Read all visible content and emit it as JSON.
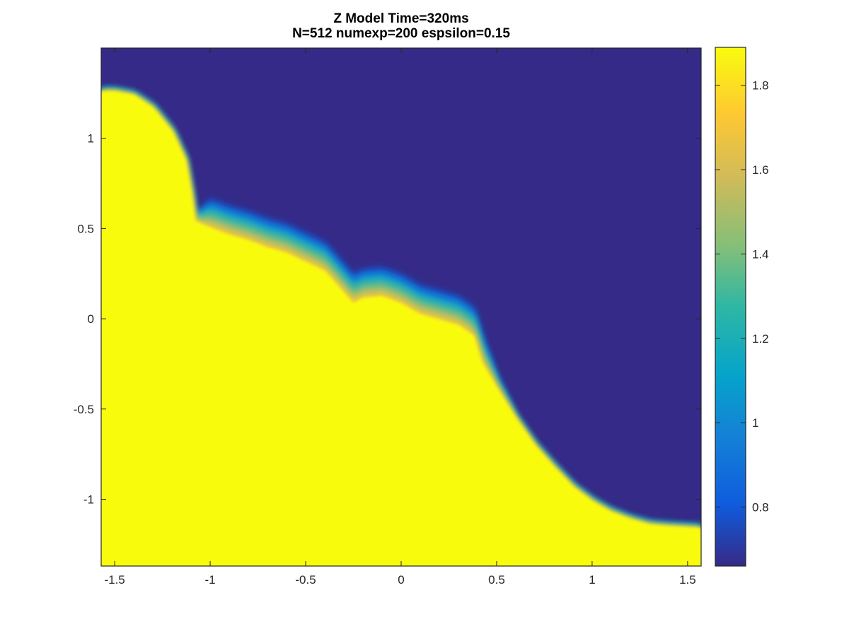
{
  "chart_data": {
    "type": "heatmap",
    "title_lines": [
      "Z Model Time=320ms",
      "N=512 numexp=200 espsilon=0.15"
    ],
    "xlabel": "",
    "ylabel": "",
    "xlim": [
      -1.5708,
      1.5708
    ],
    "ylim": [
      -1.37,
      1.5
    ],
    "x_ticks": [
      -1.5,
      -1,
      -0.5,
      0,
      0.5,
      1,
      1.5
    ],
    "x_tick_labels": [
      "-1.5",
      "-1",
      "-0.5",
      "0",
      "0.5",
      "1",
      "1.5"
    ],
    "y_ticks": [
      -1,
      -0.5,
      0,
      0.5,
      1
    ],
    "y_tick_labels": [
      "-1",
      "-0.5",
      "0",
      "0.5",
      "1"
    ],
    "colormap": "parula",
    "clim": [
      0.66,
      1.89
    ],
    "colorbar_ticks": [
      0.8,
      1,
      1.2,
      1.4,
      1.6,
      1.8
    ],
    "colorbar_tick_labels": [
      "0.8",
      "1",
      "1.2",
      "1.4",
      "1.6",
      "1.8"
    ],
    "low_value": 0.66,
    "high_value": 1.89,
    "description_regions": "high value region below interface, low value region above",
    "interface": [
      {
        "x": -1.5708,
        "y": 1.26
      },
      {
        "x": -1.5,
        "y": 1.26
      },
      {
        "x": -1.4,
        "y": 1.24
      },
      {
        "x": -1.3,
        "y": 1.17
      },
      {
        "x": -1.2,
        "y": 1.04
      },
      {
        "x": -1.13,
        "y": 0.88
      },
      {
        "x": -1.1,
        "y": 0.7
      },
      {
        "x": -1.08,
        "y": 0.55
      },
      {
        "x": -1.0,
        "y": 0.56
      },
      {
        "x": -0.9,
        "y": 0.52
      },
      {
        "x": -0.8,
        "y": 0.49
      },
      {
        "x": -0.7,
        "y": 0.45
      },
      {
        "x": -0.6,
        "y": 0.42
      },
      {
        "x": -0.5,
        "y": 0.37
      },
      {
        "x": -0.4,
        "y": 0.32
      },
      {
        "x": -0.3,
        "y": 0.2
      },
      {
        "x": -0.25,
        "y": 0.14
      },
      {
        "x": -0.2,
        "y": 0.17
      },
      {
        "x": -0.1,
        "y": 0.18
      },
      {
        "x": 0.0,
        "y": 0.14
      },
      {
        "x": 0.1,
        "y": 0.08
      },
      {
        "x": 0.2,
        "y": 0.05
      },
      {
        "x": 0.3,
        "y": 0.02
      },
      {
        "x": 0.38,
        "y": -0.04
      },
      {
        "x": 0.42,
        "y": -0.18
      },
      {
        "x": 0.5,
        "y": -0.36
      },
      {
        "x": 0.6,
        "y": -0.55
      },
      {
        "x": 0.7,
        "y": -0.7
      },
      {
        "x": 0.8,
        "y": -0.82
      },
      {
        "x": 0.9,
        "y": -0.93
      },
      {
        "x": 1.0,
        "y": -1.01
      },
      {
        "x": 1.1,
        "y": -1.07
      },
      {
        "x": 1.2,
        "y": -1.11
      },
      {
        "x": 1.3,
        "y": -1.14
      },
      {
        "x": 1.4,
        "y": -1.15
      },
      {
        "x": 1.5708,
        "y": -1.16
      }
    ]
  }
}
